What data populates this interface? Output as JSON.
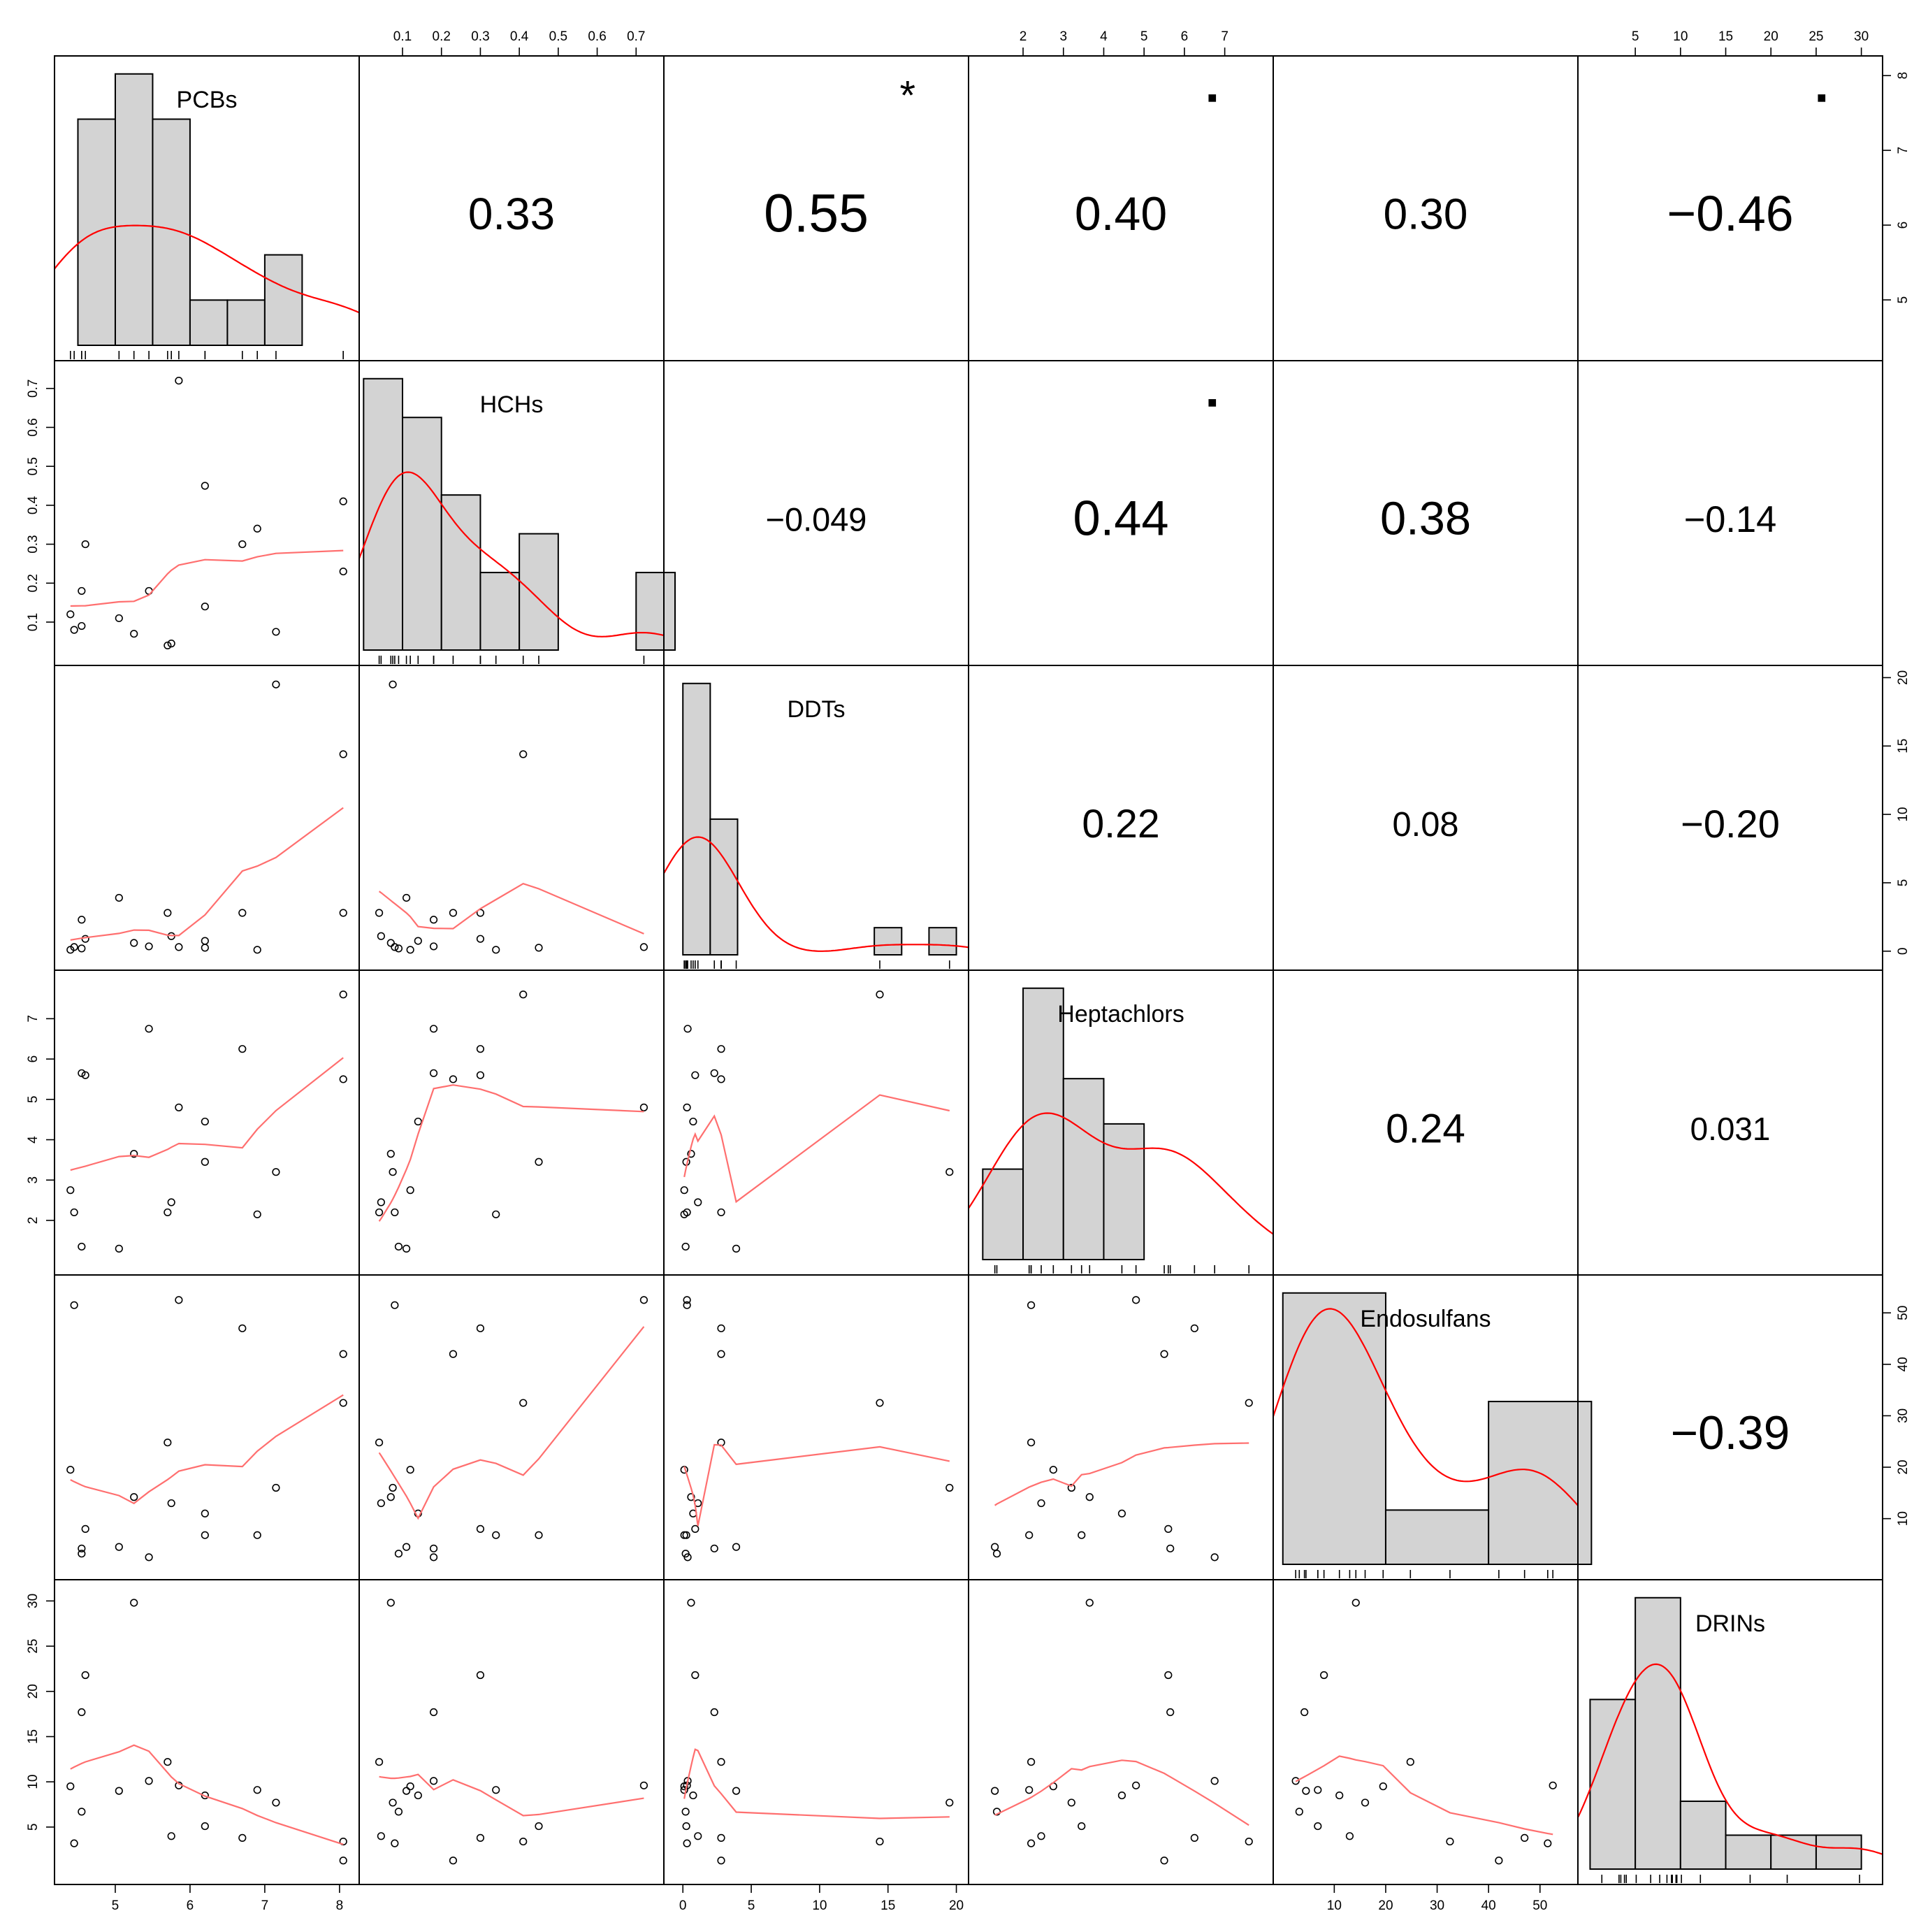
{
  "chart_data": {
    "type": "scatter",
    "subtype": "correlation-matrix",
    "variables": [
      "PCBs",
      "HCHs",
      "DDTs",
      "Heptachlors",
      "Endosulfans",
      "DRINs"
    ],
    "ranges": {
      "PCBs": [
        4.35,
        8.1
      ],
      "HCHs": [
        0.02,
        0.74
      ],
      "DDTs": [
        -0.5,
        20.0
      ],
      "Heptachlors": [
        0.95,
        7.9
      ],
      "Endosulfans": [
        0.5,
        55.0
      ],
      "DRINs": [
        0.0,
        31.0
      ]
    },
    "ticks": {
      "PCBs": [
        5,
        6,
        7,
        8
      ],
      "HCHs": [
        0.1,
        0.2,
        0.3,
        0.4,
        0.5,
        0.6,
        0.7
      ],
      "DDTs": [
        0,
        5,
        10,
        15,
        20
      ],
      "Heptachlors": [
        2,
        3,
        4,
        5,
        6,
        7
      ],
      "Endosulfans": [
        10,
        20,
        30,
        40,
        50
      ],
      "DRINs": [
        5,
        10,
        15,
        20,
        25,
        30
      ]
    },
    "tick_labels": {
      "PCBs": [
        "5",
        "6",
        "7",
        "8"
      ],
      "HCHs": [
        "0.1",
        "0.2",
        "0.3",
        "0.4",
        "0.5",
        "0.6",
        "0.7"
      ],
      "DDTs": [
        "0",
        "5",
        "10",
        "15",
        "20"
      ],
      "Heptachlors": [
        "2",
        "3",
        "4",
        "5",
        "6",
        "7"
      ],
      "Endosulfans": [
        "10",
        "20",
        "30",
        "40",
        "50"
      ],
      "DRINs": [
        "5",
        "10",
        "15",
        "20",
        "25",
        "30"
      ]
    },
    "correlations": [
      {
        "row": 0,
        "col": 1,
        "label": "0.33",
        "stars": ""
      },
      {
        "row": 0,
        "col": 2,
        "label": "0.55",
        "stars": "*"
      },
      {
        "row": 0,
        "col": 3,
        "label": "0.40",
        "stars": "."
      },
      {
        "row": 0,
        "col": 4,
        "label": "0.30",
        "stars": ""
      },
      {
        "row": 0,
        "col": 5,
        "label": "−0.46",
        "stars": "."
      },
      {
        "row": 1,
        "col": 2,
        "label": "−0.049",
        "stars": ""
      },
      {
        "row": 1,
        "col": 3,
        "label": "0.44",
        "stars": "."
      },
      {
        "row": 1,
        "col": 4,
        "label": "0.38",
        "stars": ""
      },
      {
        "row": 1,
        "col": 5,
        "label": "−0.14",
        "stars": ""
      },
      {
        "row": 2,
        "col": 3,
        "label": "0.22",
        "stars": ""
      },
      {
        "row": 2,
        "col": 4,
        "label": "0.08",
        "stars": ""
      },
      {
        "row": 2,
        "col": 5,
        "label": "−0.20",
        "stars": ""
      },
      {
        "row": 3,
        "col": 4,
        "label": "0.24",
        "stars": ""
      },
      {
        "row": 3,
        "col": 5,
        "label": "0.031",
        "stars": ""
      },
      {
        "row": 4,
        "col": 5,
        "label": "−0.39",
        "stars": ""
      }
    ],
    "observations": [
      {
        "PCBs": 4.4,
        "HCHs": 0.12,
        "DDTs": 0.1,
        "Heptachlors": 2.75,
        "Endosulfans": 19.5,
        "DRINs": 9.5
      },
      {
        "PCBs": 4.45,
        "HCHs": 0.08,
        "DDTs": 0.3,
        "Heptachlors": 2.2,
        "Endosulfans": 51.5,
        "DRINs": 3.2
      },
      {
        "PCBs": 4.55,
        "HCHs": 0.09,
        "DDTs": 0.2,
        "Heptachlors": 1.35,
        "Endosulfans": 3.2,
        "DRINs": 6.7
      },
      {
        "PCBs": 4.55,
        "HCHs": 0.18,
        "DDTs": 2.3,
        "Heptachlors": 5.65,
        "Endosulfans": 4.2,
        "DRINs": 17.7
      },
      {
        "PCBs": 4.6,
        "HCHs": 0.3,
        "DDTs": 0.9,
        "Heptachlors": 5.6,
        "Endosulfans": 8.0,
        "DRINs": 21.8
      },
      {
        "PCBs": 5.05,
        "HCHs": 0.11,
        "DDTs": 3.9,
        "Heptachlors": 1.3,
        "Endosulfans": 4.5,
        "DRINs": 9.0
      },
      {
        "PCBs": 5.25,
        "HCHs": 0.07,
        "DDTs": 0.6,
        "Heptachlors": 3.65,
        "Endosulfans": 14.2,
        "DRINs": 29.8
      },
      {
        "PCBs": 5.45,
        "HCHs": 0.18,
        "DDTs": 0.35,
        "Heptachlors": 6.75,
        "Endosulfans": 2.5,
        "DRINs": 10.1
      },
      {
        "PCBs": 5.7,
        "HCHs": 0.04,
        "DDTs": 2.8,
        "Heptachlors": 2.2,
        "Endosulfans": 24.8,
        "DRINs": 12.2
      },
      {
        "PCBs": 5.75,
        "HCHs": 0.045,
        "DDTs": 1.1,
        "Heptachlors": 2.45,
        "Endosulfans": 13.0,
        "DRINs": 4.0
      },
      {
        "PCBs": 5.85,
        "HCHs": 0.72,
        "DDTs": 0.3,
        "Heptachlors": 4.8,
        "Endosulfans": 52.5,
        "DRINs": 9.6
      },
      {
        "PCBs": 6.2,
        "HCHs": 0.14,
        "DDTs": 0.75,
        "Heptachlors": 4.45,
        "Endosulfans": 11.0,
        "DRINs": 8.5
      },
      {
        "PCBs": 6.2,
        "HCHs": 0.45,
        "DDTs": 0.25,
        "Heptachlors": 3.45,
        "Endosulfans": 6.8,
        "DRINs": 5.1
      },
      {
        "PCBs": 6.7,
        "HCHs": 0.3,
        "DDTs": 2.8,
        "Heptachlors": 6.25,
        "Endosulfans": 47.0,
        "DRINs": 3.8
      },
      {
        "PCBs": 6.9,
        "HCHs": 0.34,
        "DDTs": 0.1,
        "Heptachlors": 2.15,
        "Endosulfans": 6.8,
        "DRINs": 9.1
      },
      {
        "PCBs": 7.15,
        "HCHs": 0.075,
        "DDTs": 19.5,
        "Heptachlors": 3.2,
        "Endosulfans": 16.0,
        "DRINs": 7.7
      },
      {
        "PCBs": 8.05,
        "HCHs": 0.41,
        "DDTs": 14.4,
        "Heptachlors": 7.6,
        "Endosulfans": 32.5,
        "DRINs": 3.4
      },
      {
        "PCBs": 8.05,
        "HCHs": 0.23,
        "DDTs": 2.8,
        "Heptachlors": 5.5,
        "Endosulfans": 42.0,
        "DRINs": 1.3
      }
    ],
    "histograms": {
      "PCBs": {
        "edges": [
          4.5,
          5.0,
          5.5,
          6.0,
          6.5,
          7.0,
          7.5,
          8.0
        ],
        "counts": [
          5,
          6,
          5,
          1,
          1,
          2,
          0
        ]
      },
      "HCHs": {
        "edges": [
          0.0,
          0.1,
          0.2,
          0.3,
          0.4,
          0.5,
          0.6,
          0.7,
          0.8
        ],
        "counts": [
          7,
          6,
          4,
          2,
          3,
          0,
          0,
          2
        ]
      },
      "DDTs": {
        "edges": [
          0,
          2,
          4,
          6,
          8,
          10,
          12,
          14,
          16,
          18,
          20
        ],
        "counts": [
          10,
          5,
          0,
          0,
          0,
          0,
          0,
          1,
          0,
          1
        ]
      },
      "Heptachlors": {
        "edges": [
          1,
          2,
          3,
          4,
          5,
          6,
          7,
          8
        ],
        "counts": [
          2,
          6,
          4,
          3,
          0,
          0,
          0
        ]
      },
      "Endosulfans": {
        "edges": [
          0,
          20,
          40,
          60
        ],
        "counts": [
          10,
          2,
          6
        ]
      },
      "DRINs": {
        "edges": [
          0,
          5,
          10,
          15,
          20,
          25,
          30
        ],
        "counts": [
          5,
          8,
          2,
          1,
          1,
          1
        ]
      }
    },
    "grid": false,
    "legend": "none",
    "colors": {
      "histogram_fill": "#d3d3d3",
      "density_line": "#ff0000",
      "smooth_line": "#ff6f6f",
      "stars": "#f0506e",
      "points": "#000000"
    }
  }
}
